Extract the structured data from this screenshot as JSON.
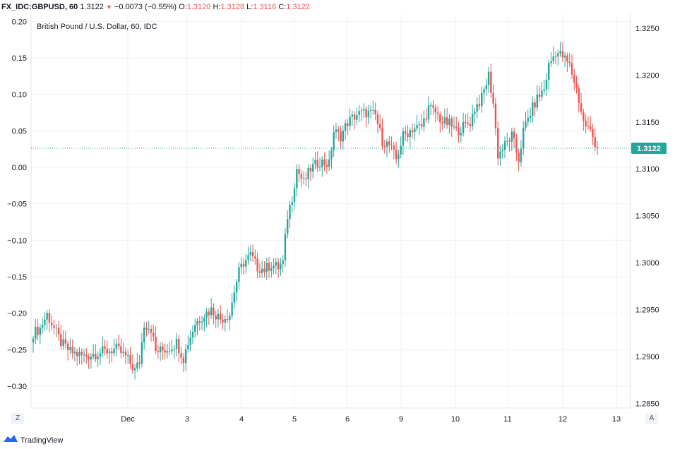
{
  "header": {
    "symbol": "FX_IDC:GBPUSD, 60",
    "last": "1.3122",
    "change": "−0.0073 (−0.55%)",
    "o_label": "O:",
    "o_value": "1.3120",
    "h_label": "H:",
    "h_value": "1.3128",
    "l_label": "L:",
    "l_value": "1.3116",
    "c_label": "C:",
    "c_value": "1.3122",
    "down_icon": "triangle-down-icon"
  },
  "legend": "British Pound / U.S. Dollar, 60, IDC",
  "price_badge": "1.3122",
  "buttons": {
    "z": "Z",
    "a": "A"
  },
  "footer": {
    "brand": "TradingView",
    "logo_icon": "tradingview-logo-icon"
  },
  "colors": {
    "up": "#26a69a",
    "down": "#ef5350",
    "grid": "#e6ebf0",
    "price_line": "#26a69a"
  },
  "chart_data": {
    "type": "candlestick",
    "title": "British Pound / U.S. Dollar, 60, IDC",
    "left_axis": {
      "ticks": [
        "0.20",
        "0.15",
        "0.10",
        "0.05",
        "0.00",
        "−0.05",
        "−0.10",
        "−0.15",
        "−0.20",
        "−0.25",
        "−0.30"
      ],
      "range": [
        -0.33,
        0.21
      ]
    },
    "right_axis": {
      "ticks": [
        "1.3250",
        "1.3200",
        "1.3150",
        "1.3100",
        "1.3050",
        "1.3000",
        "1.2950",
        "1.2900",
        "1.2850"
      ],
      "range": [
        1.2845,
        1.3265
      ]
    },
    "x_ticks": [
      "Dec",
      "3",
      "4",
      "5",
      "6",
      "9",
      "10",
      "11",
      "12",
      "13"
    ],
    "last_price": 1.3122,
    "close_path": [
      [
        0,
        1.2925
      ],
      [
        3,
        1.293
      ],
      [
        6,
        1.2945
      ],
      [
        9,
        1.293
      ],
      [
        12,
        1.2915
      ],
      [
        16,
        1.2905
      ],
      [
        22,
        1.29
      ],
      [
        30,
        1.2905
      ],
      [
        36,
        1.2908
      ],
      [
        40,
        1.29
      ],
      [
        44,
        1.2885
      ],
      [
        46,
        1.2895
      ],
      [
        48,
        1.2935
      ],
      [
        51,
        1.293
      ],
      [
        53,
        1.2905
      ],
      [
        58,
        1.2908
      ],
      [
        62,
        1.2915
      ],
      [
        65,
        1.2898
      ],
      [
        67,
        1.2915
      ],
      [
        70,
        1.2935
      ],
      [
        74,
        1.2945
      ],
      [
        77,
        1.295
      ],
      [
        81,
        1.294
      ],
      [
        85,
        1.2945
      ],
      [
        87,
        1.297
      ],
      [
        89,
        1.299
      ],
      [
        91,
        1.3
      ],
      [
        94,
        1.3008
      ],
      [
        97,
        1.2995
      ],
      [
        100,
        1.2993
      ],
      [
        103,
        1.2998
      ],
      [
        106,
        1.2995
      ],
      [
        108,
        1.3
      ],
      [
        110,
        1.305
      ],
      [
        112,
        1.307
      ],
      [
        114,
        1.31
      ],
      [
        117,
        1.3085
      ],
      [
        120,
        1.31
      ],
      [
        124,
        1.3108
      ],
      [
        128,
        1.3105
      ],
      [
        130,
        1.314
      ],
      [
        133,
        1.3135
      ],
      [
        136,
        1.315
      ],
      [
        140,
        1.3158
      ],
      [
        144,
        1.316
      ],
      [
        148,
        1.3157
      ],
      [
        151,
        1.313
      ],
      [
        154,
        1.3125
      ],
      [
        157,
        1.311
      ],
      [
        160,
        1.3135
      ],
      [
        164,
        1.3143
      ],
      [
        168,
        1.3145
      ],
      [
        171,
        1.3165
      ],
      [
        174,
        1.316
      ],
      [
        177,
        1.315
      ],
      [
        180,
        1.3148
      ],
      [
        183,
        1.314
      ],
      [
        186,
        1.3145
      ],
      [
        189,
        1.315
      ],
      [
        191,
        1.3165
      ],
      [
        194,
        1.3175
      ],
      [
        197,
        1.32
      ],
      [
        199,
        1.317
      ],
      [
        201,
        1.3115
      ],
      [
        204,
        1.3125
      ],
      [
        207,
        1.3135
      ],
      [
        210,
        1.311
      ],
      [
        212,
        1.314
      ],
      [
        215,
        1.316
      ],
      [
        218,
        1.3175
      ],
      [
        221,
        1.3185
      ],
      [
        223,
        1.321
      ],
      [
        226,
        1.3225
      ],
      [
        229,
        1.322
      ],
      [
        232,
        1.321
      ],
      [
        235,
        1.3185
      ],
      [
        238,
        1.315
      ],
      [
        241,
        1.314
      ],
      [
        244,
        1.3122
      ]
    ]
  }
}
